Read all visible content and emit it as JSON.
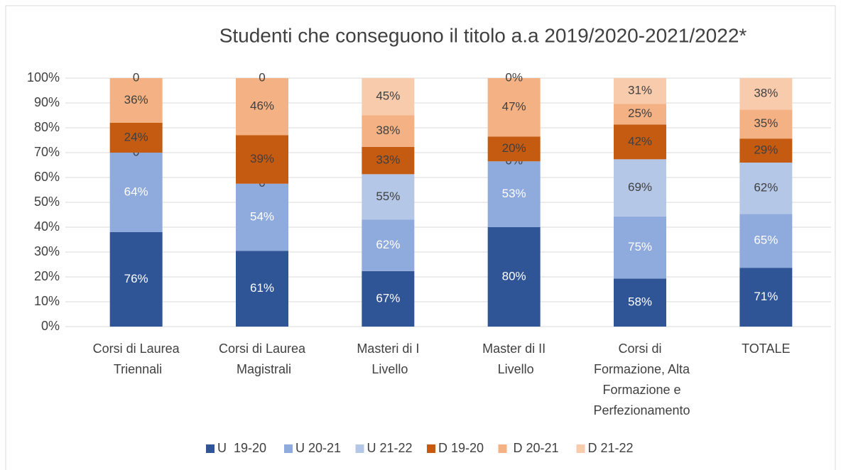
{
  "chart_data": {
    "type": "bar",
    "stacked": "percent",
    "title": "Studenti che conseguono il titolo a.a 2019/2020-2021/2022*",
    "categories": [
      "Corsi di Laurea Triennali",
      "Corsi di Laurea Magistrali",
      "Masteri di I Livello",
      "Master di II Livello",
      "Corsi di Formazione, Alta Formazione e Perfezionamento",
      "TOTALE"
    ],
    "series": [
      {
        "name": "U  19-20",
        "color": "#2f5597",
        "values": [
          76,
          61,
          67,
          80,
          58,
          71
        ],
        "value_labels": [
          "76%",
          "61%",
          "67%",
          "80%",
          "58%",
          "71%"
        ]
      },
      {
        "name": "U 20-21",
        "color": "#8faadc",
        "values": [
          64,
          54,
          62,
          53,
          75,
          65
        ],
        "value_labels": [
          "64%",
          "54%",
          "62%",
          "53%",
          "75%",
          "65%"
        ]
      },
      {
        "name": "U 21-22",
        "color": "#b4c7e7",
        "values": [
          0,
          0,
          55,
          0,
          69,
          62
        ],
        "value_labels": [
          "0",
          "0",
          "55%",
          "0%",
          "69%",
          "62%"
        ]
      },
      {
        "name": "D 19-20",
        "color": "#c55a11",
        "values": [
          24,
          39,
          33,
          20,
          42,
          29
        ],
        "value_labels": [
          "24%",
          "39%",
          "33%",
          "20%",
          "42%",
          "29%"
        ]
      },
      {
        "name": " D 20-21",
        "color": "#f4b183",
        "values": [
          36,
          46,
          38,
          47,
          25,
          35
        ],
        "value_labels": [
          "36%",
          "46%",
          "38%",
          "47%",
          "25%",
          "35%"
        ]
      },
      {
        "name": "D 21-22",
        "color": "#f8cbad",
        "values": [
          0,
          0,
          45,
          0,
          31,
          38
        ],
        "value_labels": [
          "0",
          "0",
          "45%",
          "0%",
          "31%",
          "38%"
        ]
      }
    ],
    "ylim": [
      0,
      100
    ],
    "yticks": [
      {
        "value": 0,
        "label": "0%"
      },
      {
        "value": 10,
        "label": "10%"
      },
      {
        "value": 20,
        "label": "20%"
      },
      {
        "value": 30,
        "label": "30%"
      },
      {
        "value": 40,
        "label": "40%"
      },
      {
        "value": 50,
        "label": "50%"
      },
      {
        "value": 60,
        "label": "60%"
      },
      {
        "value": 70,
        "label": "70%"
      },
      {
        "value": 80,
        "label": "80%"
      },
      {
        "value": 90,
        "label": "90%"
      },
      {
        "value": 100,
        "label": "100%"
      }
    ],
    "grid": true,
    "legend": "bottom"
  }
}
